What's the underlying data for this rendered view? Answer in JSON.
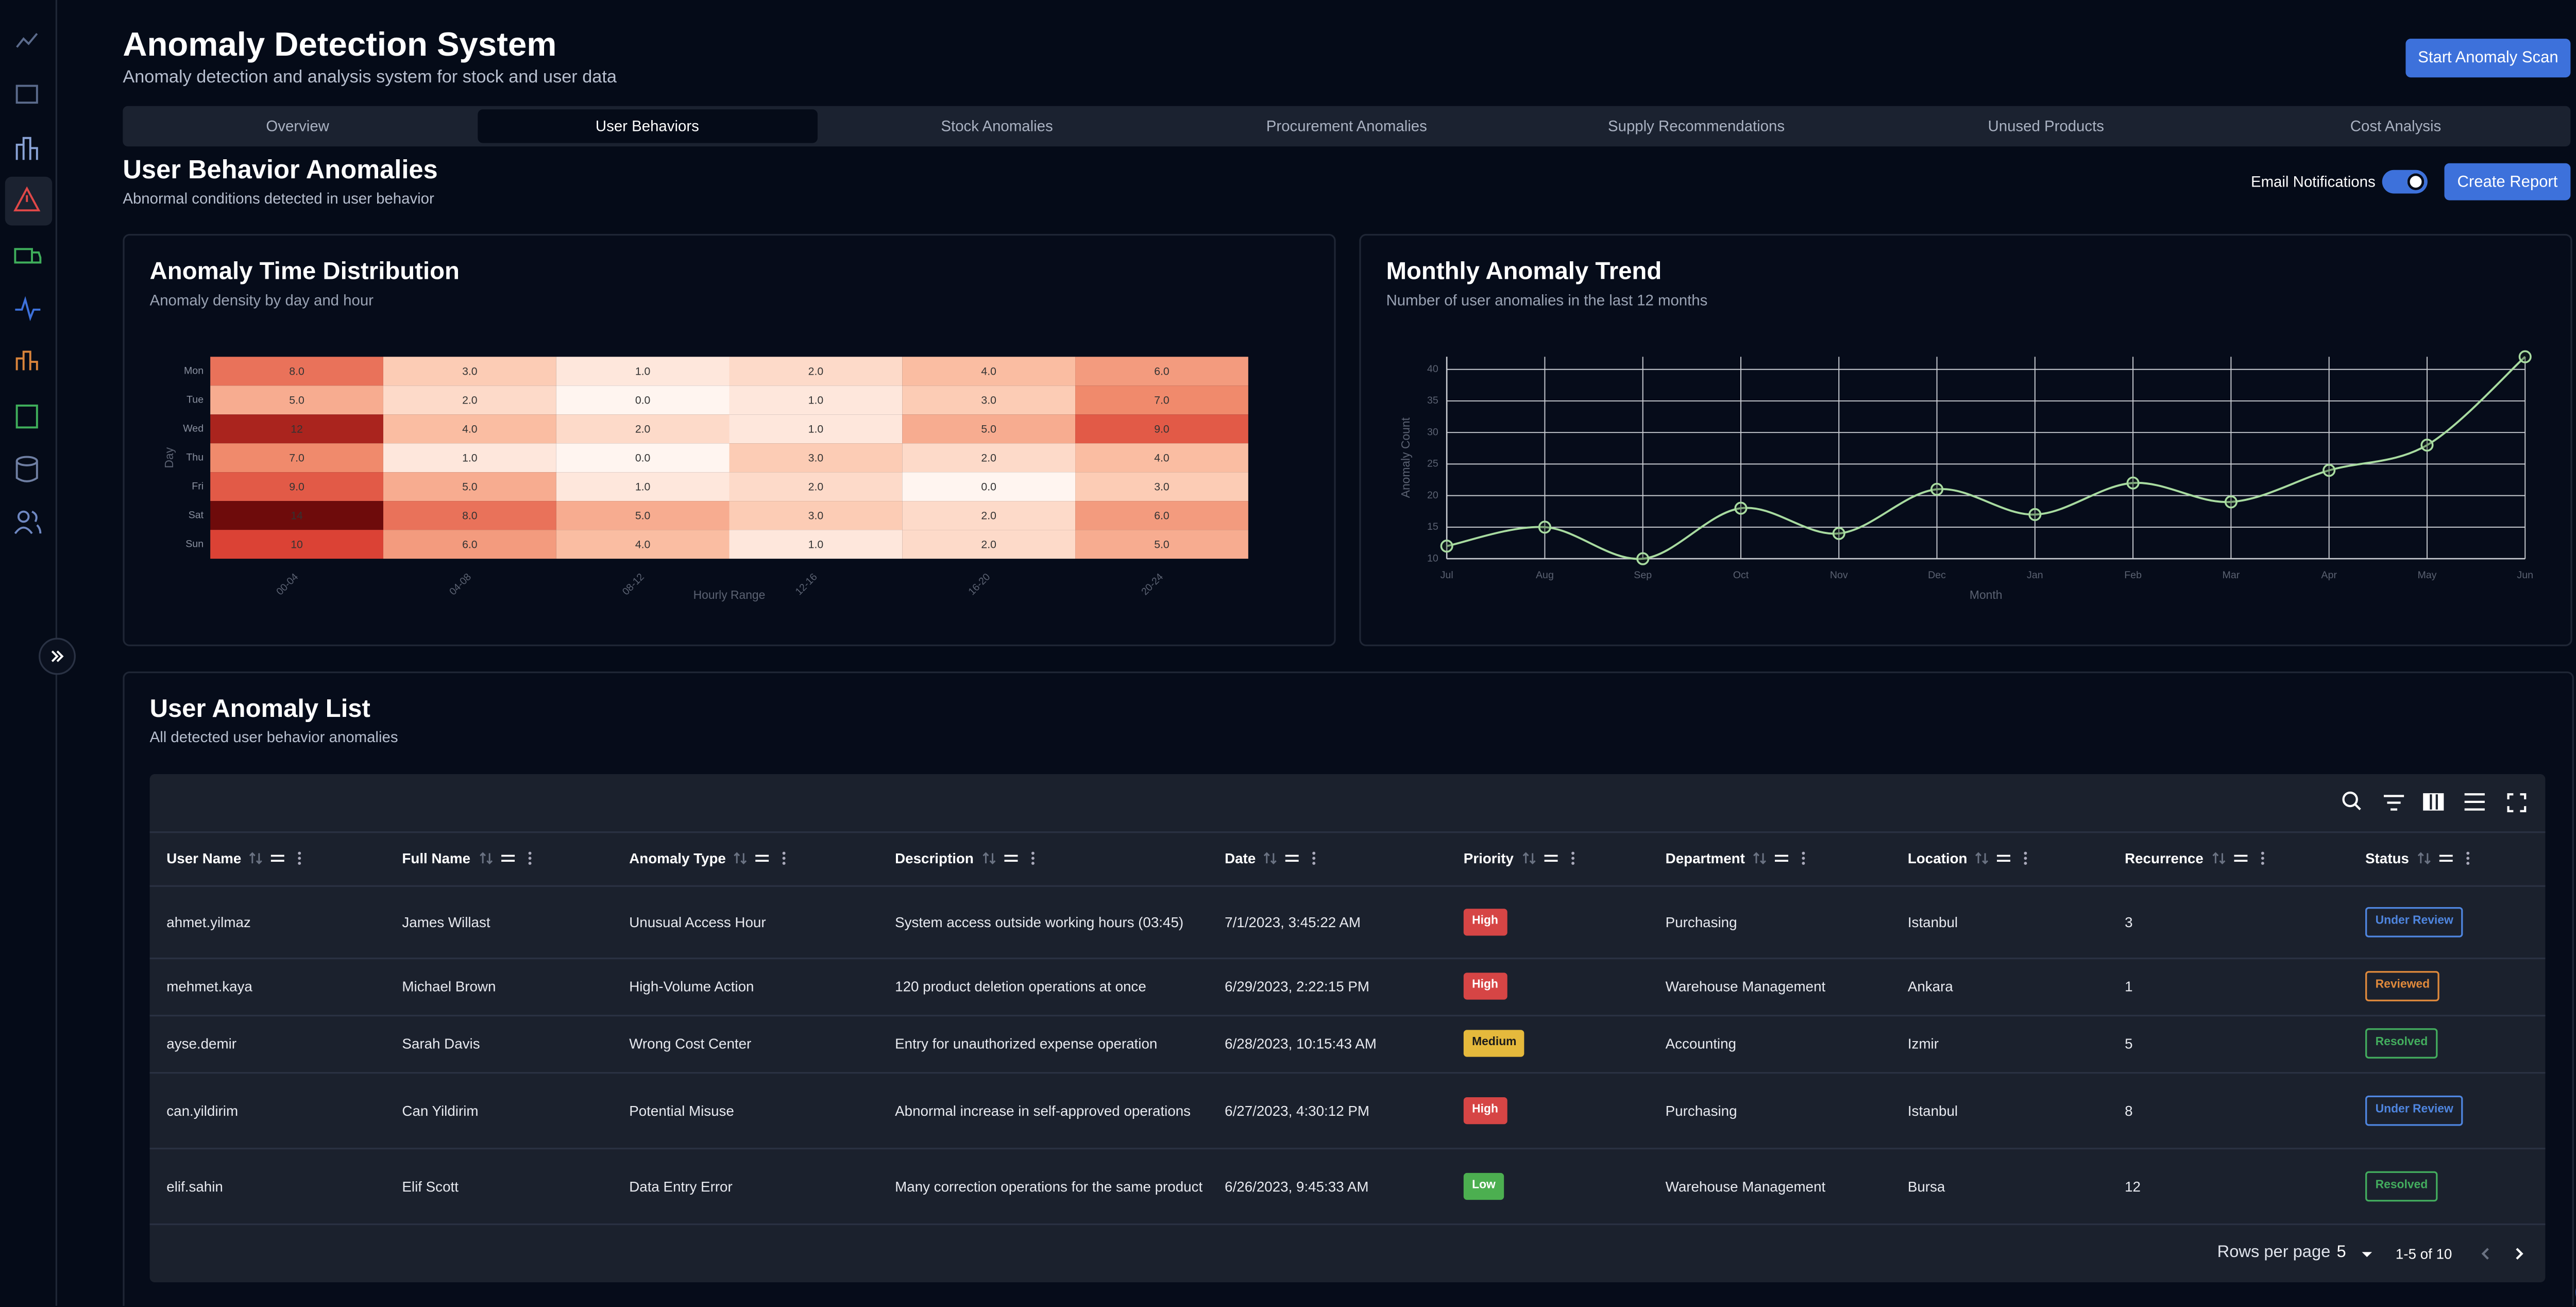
{
  "header": {
    "title": "Anomaly Detection System",
    "subtitle": "Anomaly detection and analysis system for stock and user data",
    "button": "Start Anomaly Scan"
  },
  "tabs": [
    "Overview",
    "User Behaviors",
    "Stock Anomalies",
    "Procurement Anomalies",
    "Supply Recommendations",
    "Unused Products",
    "Cost Analysis"
  ],
  "active_tab": 1,
  "section": {
    "title": "User Behavior Anomalies",
    "subtitle": "Abnormal conditions detected in user behavior",
    "toggle_label": "Email Notifications",
    "toggle_on": true,
    "button": "Create Report"
  },
  "chart_data": [
    {
      "type": "heatmap",
      "title": "Anomaly Time Distribution",
      "subtitle": "Anomaly density by day and hour",
      "x_categories": [
        "00-04",
        "04-08",
        "08-12",
        "12-16",
        "16-20",
        "20-24"
      ],
      "y_categories": [
        "Mon",
        "Tue",
        "Wed",
        "Thu",
        "Fri",
        "Sat",
        "Sun"
      ],
      "values": [
        [
          8,
          3,
          1,
          2,
          4,
          6
        ],
        [
          5,
          2,
          0,
          1,
          3,
          7
        ],
        [
          12,
          4,
          2,
          1,
          5,
          9
        ],
        [
          7,
          1,
          0,
          3,
          2,
          4
        ],
        [
          9,
          5,
          1,
          2,
          0,
          3
        ],
        [
          14,
          8,
          5,
          3,
          2,
          6
        ],
        [
          10,
          6,
          4,
          1,
          2,
          5
        ]
      ],
      "value_labels": [
        [
          "8.0",
          "3.0",
          "1.0",
          "2.0",
          "4.0",
          "6.0"
        ],
        [
          "5.0",
          "2.0",
          "0.0",
          "1.0",
          "3.0",
          "7.0"
        ],
        [
          "12",
          "4.0",
          "2.0",
          "1.0",
          "5.0",
          "9.0"
        ],
        [
          "7.0",
          "1.0",
          "0.0",
          "3.0",
          "2.0",
          "4.0"
        ],
        [
          "9.0",
          "5.0",
          "1.0",
          "2.0",
          "0.0",
          "3.0"
        ],
        [
          "14",
          "8.0",
          "5.0",
          "3.0",
          "2.0",
          "6.0"
        ],
        [
          "10",
          "6.0",
          "4.0",
          "1.0",
          "2.0",
          "5.0"
        ]
      ],
      "xlabel": "Hourly Range",
      "ylabel": "Day",
      "colors": [
        "#fff5f0",
        "#fcc5ab",
        "#f08a6c",
        "#d7362c",
        "#6e0b0b"
      ]
    },
    {
      "type": "line",
      "title": "Monthly Anomaly Trend",
      "subtitle": "Number of user anomalies in the last 12 months",
      "categories": [
        "Jul",
        "Aug",
        "Sep",
        "Oct",
        "Nov",
        "Dec",
        "Jan",
        "Feb",
        "Mar",
        "Apr",
        "May",
        "Jun"
      ],
      "values": [
        12,
        15,
        10,
        18,
        14,
        21,
        17,
        22,
        19,
        24,
        28,
        42
      ],
      "color": "#a8dba0",
      "ylim": [
        10,
        42
      ],
      "yticks": [
        10,
        15,
        20,
        25,
        30,
        35,
        40
      ],
      "xlabel": "Month",
      "ylabel": "Anomaly Count",
      "grid": true
    }
  ],
  "list": {
    "title": "User Anomaly List",
    "subtitle": "All detected user behavior anomalies",
    "columns": [
      "User Name",
      "Full Name",
      "Anomaly Type",
      "Description",
      "Date",
      "Priority",
      "Department",
      "Location",
      "Recurrence",
      "Status"
    ],
    "rows": [
      {
        "user": "ahmet.yilmaz",
        "name": "James Willast",
        "type": "Unusual Access Hour",
        "description": "System access outside working hours (03:45)",
        "date": "7/1/2023, 3:45:22 AM",
        "priority": "High",
        "priority_color": "#d64545",
        "department": "Purchasing",
        "location": "Istanbul",
        "recurrence": 3,
        "status": "Under Review",
        "status_color": "#4f86e0"
      },
      {
        "user": "mehmet.kaya",
        "name": "Michael Brown",
        "type": "High-Volume Action",
        "description": "120 product deletion operations at once",
        "date": "6/29/2023, 2:22:15 PM",
        "priority": "High",
        "priority_color": "#d64545",
        "department": "Warehouse Management",
        "location": "Ankara",
        "recurrence": 1,
        "status": "Reviewed",
        "status_color": "#e08a3c"
      },
      {
        "user": "ayse.demir",
        "name": "Sarah Davis",
        "type": "Wrong Cost Center",
        "description": "Entry for unauthorized expense operation",
        "date": "6/28/2023, 10:15:43 AM",
        "priority": "Medium",
        "priority_color": "#e5b93c",
        "department": "Accounting",
        "location": "Izmir",
        "recurrence": 5,
        "status": "Resolved",
        "status_color": "#43ad5e"
      },
      {
        "user": "can.yildirim",
        "name": "Can Yildirim",
        "type": "Potential Misuse",
        "description": "Abnormal increase in self-approved operations",
        "date": "6/27/2023, 4:30:12 PM",
        "priority": "High",
        "priority_color": "#d64545",
        "department": "Purchasing",
        "location": "Istanbul",
        "recurrence": 8,
        "status": "Under Review",
        "status_color": "#4f86e0"
      },
      {
        "user": "elif.sahin",
        "name": "Elif Scott",
        "type": "Data Entry Error",
        "description": "Many correction operations for the same product",
        "date": "6/26/2023, 9:45:33 AM",
        "priority": "Low",
        "priority_color": "#4caf50",
        "department": "Warehouse Management",
        "location": "Bursa",
        "recurrence": 12,
        "status": "Resolved",
        "status_color": "#43ad5e"
      }
    ],
    "footer": {
      "rows_per_page_label": "Rows per page",
      "rows_per_page": 5,
      "range": "1-5 of 10"
    }
  }
}
